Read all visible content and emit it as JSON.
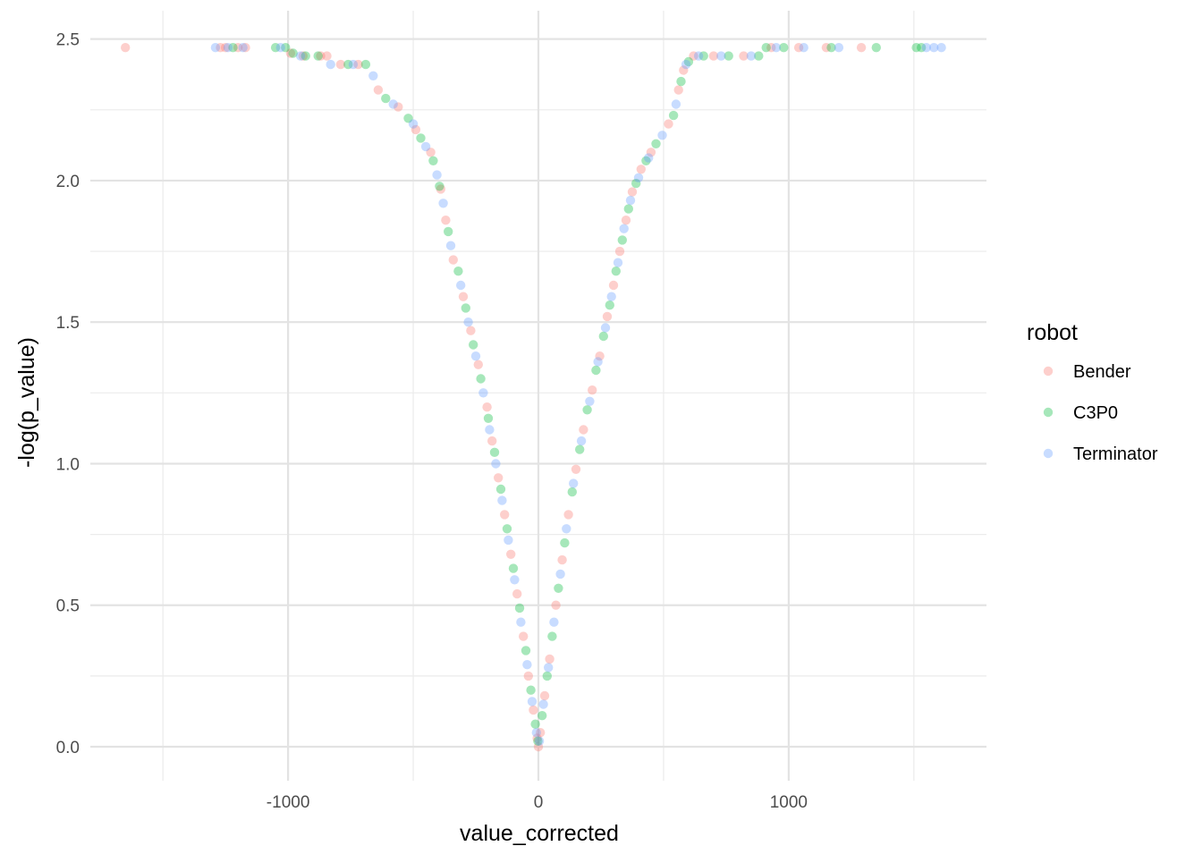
{
  "chart_data": {
    "type": "scatter",
    "title": "",
    "xlabel": "value_corrected",
    "ylabel": "-log(p_value)",
    "xlim": [
      -1790,
      1790
    ],
    "ylim": [
      -0.12,
      2.6
    ],
    "x_ticks": [
      {
        "value": -1000,
        "label": "-1000"
      },
      {
        "value": 0,
        "label": "0"
      },
      {
        "value": 1000,
        "label": "1000"
      }
    ],
    "x_minor_ticks": [
      -1500,
      -500,
      500,
      1500
    ],
    "y_ticks": [
      {
        "value": 0.0,
        "label": "0.0"
      },
      {
        "value": 0.5,
        "label": "0.5"
      },
      {
        "value": 1.0,
        "label": "1.0"
      },
      {
        "value": 1.5,
        "label": "1.5"
      },
      {
        "value": 2.0,
        "label": "2.0"
      },
      {
        "value": 2.5,
        "label": "2.5"
      }
    ],
    "y_minor_ticks": [
      0.25,
      0.75,
      1.25,
      1.75,
      2.25
    ],
    "grid": true,
    "point_alpha": 0.35,
    "legend": {
      "title": "robot",
      "position": "right",
      "entries": [
        "Bender",
        "C3P0",
        "Terminator"
      ]
    },
    "series": [
      {
        "name": "Bender",
        "color": "#F8766D",
        "points": [
          [
            -1650,
            2.47
          ],
          [
            -1270,
            2.47
          ],
          [
            -1250,
            2.47
          ],
          [
            -1200,
            2.47
          ],
          [
            -1170,
            2.47
          ],
          [
            -990,
            2.45
          ],
          [
            -940,
            2.44
          ],
          [
            -870,
            2.44
          ],
          [
            -845,
            2.44
          ],
          [
            -790,
            2.41
          ],
          [
            -720,
            2.41
          ],
          [
            -640,
            2.32
          ],
          [
            -560,
            2.26
          ],
          [
            -490,
            2.18
          ],
          [
            -430,
            2.1
          ],
          [
            -390,
            1.97
          ],
          [
            -370,
            1.86
          ],
          [
            -340,
            1.72
          ],
          [
            -300,
            1.59
          ],
          [
            -270,
            1.47
          ],
          [
            -240,
            1.35
          ],
          [
            -205,
            1.2
          ],
          [
            -185,
            1.08
          ],
          [
            -160,
            0.95
          ],
          [
            -135,
            0.82
          ],
          [
            -110,
            0.68
          ],
          [
            -85,
            0.54
          ],
          [
            -60,
            0.39
          ],
          [
            -40,
            0.25
          ],
          [
            -20,
            0.13
          ],
          [
            -5,
            0.03
          ],
          [
            0,
            0.0
          ],
          [
            8,
            0.05
          ],
          [
            25,
            0.18
          ],
          [
            45,
            0.31
          ],
          [
            70,
            0.5
          ],
          [
            95,
            0.66
          ],
          [
            120,
            0.82
          ],
          [
            150,
            0.98
          ],
          [
            180,
            1.12
          ],
          [
            215,
            1.26
          ],
          [
            245,
            1.38
          ],
          [
            275,
            1.52
          ],
          [
            300,
            1.63
          ],
          [
            325,
            1.75
          ],
          [
            350,
            1.86
          ],
          [
            375,
            1.96
          ],
          [
            410,
            2.04
          ],
          [
            450,
            2.1
          ],
          [
            520,
            2.2
          ],
          [
            560,
            2.32
          ],
          [
            580,
            2.39
          ],
          [
            620,
            2.44
          ],
          [
            700,
            2.44
          ],
          [
            820,
            2.44
          ],
          [
            930,
            2.47
          ],
          [
            1040,
            2.47
          ],
          [
            1150,
            2.47
          ],
          [
            1290,
            2.47
          ]
        ]
      },
      {
        "name": "C3P0",
        "color": "#00BA38",
        "points": [
          [
            -1220,
            2.47
          ],
          [
            -1050,
            2.47
          ],
          [
            -1010,
            2.47
          ],
          [
            -980,
            2.45
          ],
          [
            -930,
            2.44
          ],
          [
            -880,
            2.44
          ],
          [
            -760,
            2.41
          ],
          [
            -690,
            2.41
          ],
          [
            -610,
            2.29
          ],
          [
            -520,
            2.22
          ],
          [
            -470,
            2.15
          ],
          [
            -420,
            2.07
          ],
          [
            -395,
            1.98
          ],
          [
            -360,
            1.82
          ],
          [
            -320,
            1.68
          ],
          [
            -290,
            1.55
          ],
          [
            -260,
            1.42
          ],
          [
            -230,
            1.3
          ],
          [
            -200,
            1.16
          ],
          [
            -175,
            1.04
          ],
          [
            -150,
            0.91
          ],
          [
            -125,
            0.77
          ],
          [
            -100,
            0.63
          ],
          [
            -75,
            0.49
          ],
          [
            -50,
            0.34
          ],
          [
            -30,
            0.2
          ],
          [
            -12,
            0.08
          ],
          [
            -2,
            0.02
          ],
          [
            15,
            0.11
          ],
          [
            35,
            0.25
          ],
          [
            55,
            0.39
          ],
          [
            80,
            0.56
          ],
          [
            105,
            0.72
          ],
          [
            135,
            0.9
          ],
          [
            165,
            1.05
          ],
          [
            195,
            1.19
          ],
          [
            230,
            1.33
          ],
          [
            260,
            1.45
          ],
          [
            285,
            1.56
          ],
          [
            310,
            1.68
          ],
          [
            335,
            1.79
          ],
          [
            360,
            1.9
          ],
          [
            390,
            1.99
          ],
          [
            430,
            2.07
          ],
          [
            470,
            2.13
          ],
          [
            540,
            2.23
          ],
          [
            570,
            2.35
          ],
          [
            600,
            2.42
          ],
          [
            660,
            2.44
          ],
          [
            760,
            2.44
          ],
          [
            880,
            2.44
          ],
          [
            910,
            2.47
          ],
          [
            980,
            2.47
          ],
          [
            1170,
            2.47
          ],
          [
            1350,
            2.47
          ],
          [
            1510,
            2.47
          ],
          [
            1530,
            2.47
          ]
        ]
      },
      {
        "name": "Terminator",
        "color": "#619CFF",
        "points": [
          [
            -1290,
            2.47
          ],
          [
            -1240,
            2.47
          ],
          [
            -1180,
            2.47
          ],
          [
            -1030,
            2.47
          ],
          [
            -950,
            2.44
          ],
          [
            -830,
            2.41
          ],
          [
            -740,
            2.41
          ],
          [
            -660,
            2.37
          ],
          [
            -580,
            2.27
          ],
          [
            -500,
            2.2
          ],
          [
            -450,
            2.12
          ],
          [
            -405,
            2.02
          ],
          [
            -380,
            1.92
          ],
          [
            -350,
            1.77
          ],
          [
            -310,
            1.63
          ],
          [
            -280,
            1.5
          ],
          [
            -250,
            1.38
          ],
          [
            -220,
            1.25
          ],
          [
            -195,
            1.12
          ],
          [
            -170,
            1.0
          ],
          [
            -145,
            0.87
          ],
          [
            -120,
            0.73
          ],
          [
            -95,
            0.59
          ],
          [
            -70,
            0.44
          ],
          [
            -45,
            0.29
          ],
          [
            -25,
            0.16
          ],
          [
            -8,
            0.05
          ],
          [
            4,
            0.02
          ],
          [
            20,
            0.15
          ],
          [
            40,
            0.28
          ],
          [
            62,
            0.44
          ],
          [
            88,
            0.61
          ],
          [
            112,
            0.77
          ],
          [
            140,
            0.93
          ],
          [
            172,
            1.08
          ],
          [
            205,
            1.22
          ],
          [
            238,
            1.36
          ],
          [
            268,
            1.48
          ],
          [
            292,
            1.59
          ],
          [
            318,
            1.71
          ],
          [
            342,
            1.83
          ],
          [
            368,
            1.93
          ],
          [
            400,
            2.01
          ],
          [
            440,
            2.08
          ],
          [
            495,
            2.16
          ],
          [
            550,
            2.27
          ],
          [
            590,
            2.41
          ],
          [
            640,
            2.44
          ],
          [
            730,
            2.44
          ],
          [
            850,
            2.44
          ],
          [
            950,
            2.47
          ],
          [
            1060,
            2.47
          ],
          [
            1200,
            2.47
          ],
          [
            1550,
            2.47
          ],
          [
            1580,
            2.47
          ],
          [
            1610,
            2.47
          ]
        ]
      }
    ]
  }
}
